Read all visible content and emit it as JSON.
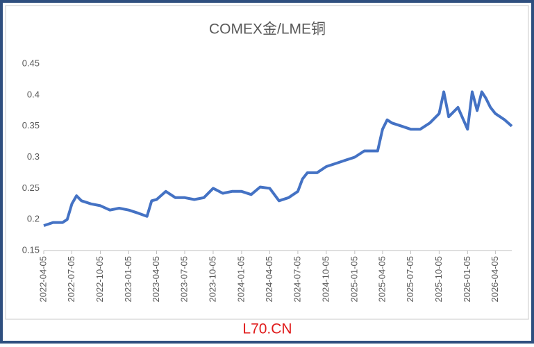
{
  "chart_data": {
    "type": "line",
    "title": "COMEX金/LME铜",
    "x": [
      "2022-04-05",
      "2022-05-05",
      "2022-06-05",
      "2022-06-20",
      "2022-07-05",
      "2022-07-20",
      "2022-08-05",
      "2022-09-05",
      "2022-10-05",
      "2022-11-05",
      "2022-12-05",
      "2023-01-05",
      "2023-02-05",
      "2023-03-05",
      "2023-03-20",
      "2023-04-05",
      "2023-05-05",
      "2023-06-05",
      "2023-07-05",
      "2023-08-05",
      "2023-09-05",
      "2023-10-05",
      "2023-11-05",
      "2023-12-05",
      "2024-01-05",
      "2024-02-05",
      "2024-03-05",
      "2024-04-05",
      "2024-05-05",
      "2024-06-05",
      "2024-07-05",
      "2024-07-20",
      "2024-08-05",
      "2024-09-05",
      "2024-10-05",
      "2024-11-05",
      "2024-12-05",
      "2025-01-05",
      "2025-02-05",
      "2025-03-05",
      "2025-03-20",
      "2025-04-05",
      "2025-04-20",
      "2025-05-05",
      "2025-06-05",
      "2025-07-05",
      "2025-08-05",
      "2025-09-05",
      "2025-10-05",
      "2025-10-20",
      "2025-11-05",
      "2025-12-05",
      "2026-01-05",
      "2026-01-20",
      "2026-02-05",
      "2026-02-20",
      "2026-03-05",
      "2026-03-20",
      "2026-04-05",
      "2026-05-05",
      "2026-05-28"
    ],
    "series": [
      {
        "name": "COMEX金/LME铜",
        "color": "#4472c4",
        "values": [
          0.19,
          0.195,
          0.195,
          0.2,
          0.225,
          0.238,
          0.23,
          0.225,
          0.222,
          0.215,
          0.218,
          0.215,
          0.21,
          0.205,
          0.23,
          0.232,
          0.245,
          0.235,
          0.235,
          0.232,
          0.235,
          0.25,
          0.242,
          0.245,
          0.245,
          0.24,
          0.252,
          0.25,
          0.23,
          0.235,
          0.245,
          0.265,
          0.275,
          0.275,
          0.285,
          0.29,
          0.295,
          0.3,
          0.31,
          0.31,
          0.31,
          0.345,
          0.36,
          0.355,
          0.35,
          0.345,
          0.345,
          0.355,
          0.37,
          0.405,
          0.365,
          0.38,
          0.345,
          0.405,
          0.375,
          0.405,
          0.395,
          0.38,
          0.37,
          0.36,
          0.35
        ]
      }
    ],
    "xlim": [
      "2022-04-05",
      "2026-05-28"
    ],
    "xticks": [
      "2022-04-05",
      "2022-07-05",
      "2022-10-05",
      "2023-01-05",
      "2023-04-05",
      "2023-07-05",
      "2023-10-05",
      "2024-01-05",
      "2024-04-05",
      "2024-07-05",
      "2024-10-05",
      "2025-01-05",
      "2025-04-05",
      "2025-07-05",
      "2025-10-05",
      "2026-01-05",
      "2026-04-05"
    ],
    "ylim": [
      0.15,
      0.45
    ],
    "yticks": [
      0.15,
      0.2,
      0.25,
      0.3,
      0.35,
      0.4,
      0.45
    ],
    "grid": false
  },
  "watermark": "L70.CN"
}
